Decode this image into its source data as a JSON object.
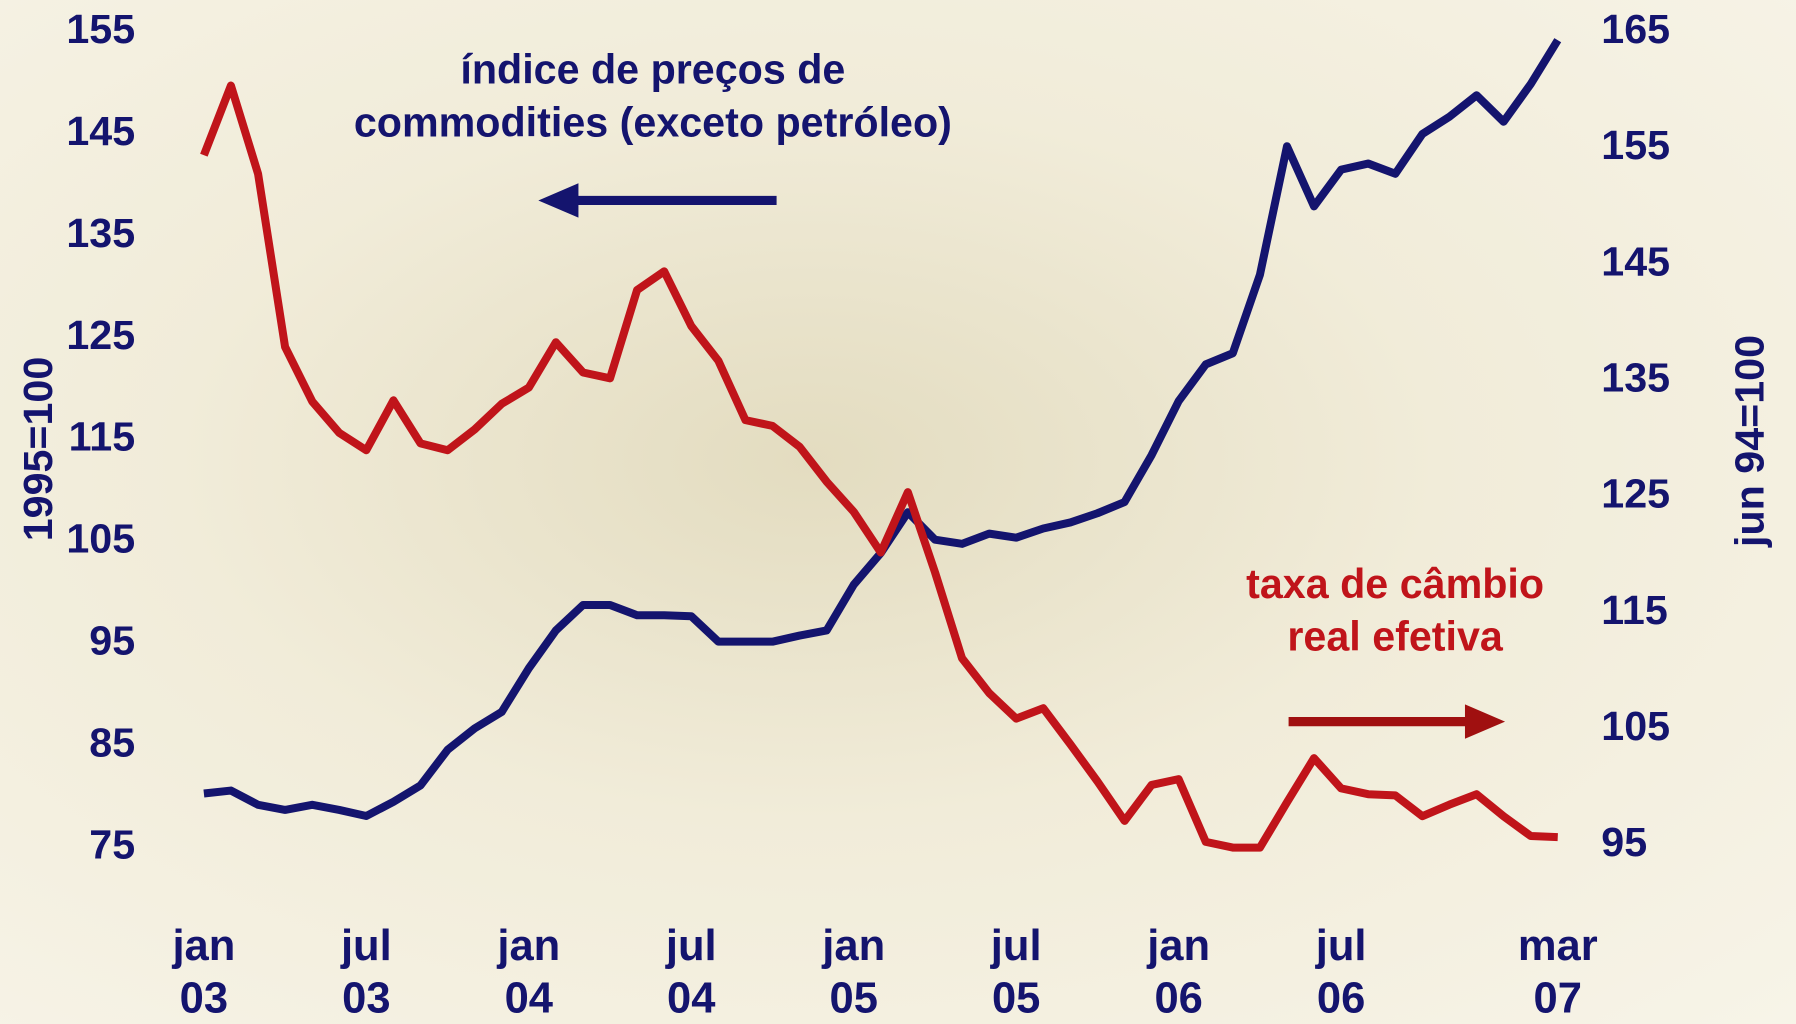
{
  "chart_data": {
    "type": "line",
    "categories": [
      "jan\n03",
      null,
      null,
      null,
      null,
      null,
      "jul\n03",
      null,
      null,
      null,
      null,
      null,
      "jan\n04",
      null,
      null,
      null,
      null,
      null,
      "jul\n04",
      null,
      null,
      null,
      null,
      null,
      "jan\n05",
      null,
      null,
      null,
      null,
      null,
      "jul\n05",
      null,
      null,
      null,
      null,
      null,
      "jan\n06",
      null,
      null,
      null,
      null,
      null,
      "jul\n06",
      null,
      null,
      null,
      null,
      null,
      null,
      null,
      "mar\n07"
    ],
    "ylabel": "1995=100",
    "y2label": "jun 94=100",
    "ylim": [
      75,
      155
    ],
    "yticks": [
      75,
      85,
      95,
      105,
      115,
      125,
      135,
      145,
      155
    ],
    "y2lim": [
      95,
      165
    ],
    "y2ticks": [
      95,
      105,
      115,
      125,
      135,
      145,
      155,
      165
    ],
    "series": [
      {
        "name": "índice de preços de\ncommodities (exceto petróleo)",
        "color": "#14146e",
        "values": [
          80.3,
          80.6,
          79.2,
          78.7,
          79.2,
          78.7,
          78.1,
          79.5,
          81.1,
          84.6,
          86.7,
          88.3,
          92.6,
          96.3,
          98.8,
          98.8,
          97.8,
          97.8,
          97.7,
          95.2,
          95.2,
          95.2,
          95.8,
          96.3,
          100.8,
          103.9,
          107.9,
          105.2,
          104.8,
          105.8,
          105.4,
          106.3,
          106.9,
          107.8,
          108.9,
          113.5,
          118.8,
          122.4,
          123.5,
          131.2,
          143.8,
          137.9,
          141.5,
          142.1,
          141.1,
          145.0,
          146.7,
          148.8,
          146.2,
          149.9,
          154.2
        ]
      },
      {
        "name": "taxa de câmbio\nreal efetiva",
        "color": "#c0141a",
        "axis": "y2",
        "values": [
          154.4,
          160.4,
          152.8,
          137.9,
          133.2,
          130.5,
          129.0,
          133.3,
          129.6,
          129.0,
          130.8,
          133.0,
          134.4,
          138.3,
          135.7,
          135.2,
          142.8,
          144.4,
          139.7,
          136.7,
          131.6,
          131.1,
          129.3,
          126.3,
          123.7,
          120.2,
          125.4,
          118.5,
          111.1,
          108.1,
          105.9,
          106.8,
          103.7,
          100.5,
          97.1,
          100.2,
          100.7,
          95.3,
          94.8,
          94.8,
          98.7,
          102.5,
          99.9,
          99.4,
          99.3,
          97.5,
          98.5,
          99.4,
          97.5,
          95.8,
          95.7
        ]
      }
    ]
  }
}
